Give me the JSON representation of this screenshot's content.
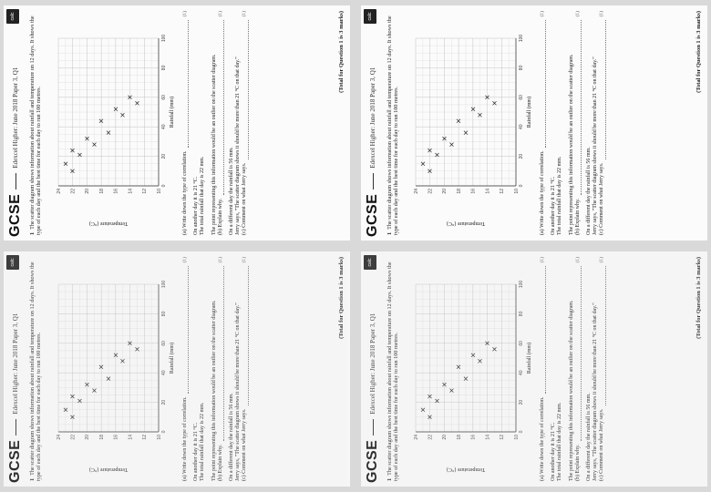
{
  "header": {
    "title": "GCSE",
    "paper": "Edexcel Higher: June 2018 Paper 3, Q1",
    "logo_text": "calc"
  },
  "question": {
    "number": "1",
    "intro": "The scatter diagram shows information about rainfall and temperature on 12 days. It shows the type of each day and the best time for each day to run 100 metres."
  },
  "part_a": {
    "label": "(a) Write down the type of correlation.",
    "marks": "(1)"
  },
  "part_b": {
    "line1": "On another day it is 21 °C.",
    "line2": "The total rainfall that day is 22 mm.",
    "line3": "The point representing this information would be an outlier on the scatter diagram.",
    "label": "(b) Explain why.",
    "marks": "(1)"
  },
  "part_c": {
    "line1": "On a different day the rainfall is 56 mm.",
    "line2": "Jerry says, \"The scatter diagram shows it should be more than 21 °C on that day.\"",
    "label": "(c) Comment on what Jerry says.",
    "marks": "(1)"
  },
  "total": "(Total for Question 1 is 3 marks)",
  "chart_data": {
    "type": "scatter",
    "title": "",
    "xlabel": "Rainfall (mm)",
    "ylabel": "Temperature (°C)",
    "xlim": [
      0,
      100
    ],
    "ylim": [
      10,
      24
    ],
    "xticks": [
      "0",
      "20",
      "40",
      "60",
      "80",
      "100"
    ],
    "yticks": [
      "10",
      "12",
      "14",
      "16",
      "18",
      "20",
      "22",
      "24"
    ],
    "x": [
      10,
      15,
      21,
      24,
      28,
      32,
      36,
      44,
      48,
      52,
      56,
      60
    ],
    "y": [
      22,
      23,
      21,
      22,
      19,
      20,
      17,
      18,
      15,
      16,
      13,
      14
    ],
    "marker": "×",
    "grid": true
  }
}
